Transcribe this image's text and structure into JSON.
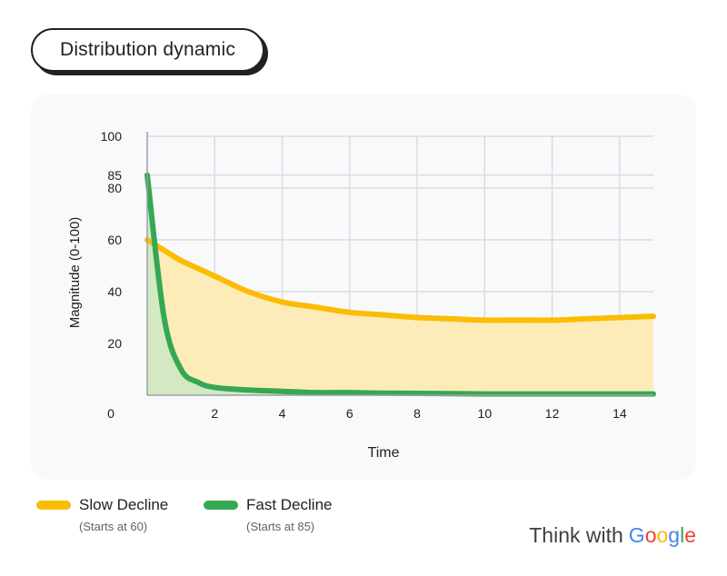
{
  "header": {
    "title": "Distribution dynamic"
  },
  "chart_data": {
    "type": "area",
    "xlabel": "Time",
    "ylabel": "Magnitude (0-100)",
    "xlim": [
      0,
      15
    ],
    "ylim": [
      0,
      100
    ],
    "x_ticks": [
      "0",
      "2",
      "4",
      "6",
      "8",
      "10",
      "12",
      "14"
    ],
    "y_ticks": [
      "20",
      "40",
      "60",
      "80",
      "85",
      "100"
    ],
    "x": [
      0,
      0.5,
      1,
      1.5,
      2,
      3,
      4,
      5,
      6,
      7,
      8,
      9,
      10,
      11,
      12,
      13,
      14,
      15
    ],
    "grid": true,
    "series": [
      {
        "name": "Slow Decline",
        "note": "(Starts at 60)",
        "color": "#FBBC04",
        "fill": "#FDECB8",
        "values": [
          60,
          56,
          52,
          49,
          46,
          40,
          36,
          34,
          32,
          31,
          30,
          29.5,
          29,
          29,
          29,
          29.5,
          30,
          30.5
        ]
      },
      {
        "name": "Fast Decline",
        "note": "(Starts at 85)",
        "color": "#34A853",
        "fill": "#CDE8C4",
        "values": [
          85,
          30,
          10,
          5,
          3,
          2,
          1.5,
          1,
          1,
          0.8,
          0.7,
          0.6,
          0.5,
          0.5,
          0.5,
          0.5,
          0.5,
          0.5
        ]
      }
    ]
  },
  "legend": {
    "slow": {
      "label": "Slow Decline",
      "note": "(Starts at 60)",
      "color": "#FBBC04"
    },
    "fast": {
      "label": "Fast Decline",
      "note": "(Starts at 85)",
      "color": "#34A853"
    }
  },
  "brand": {
    "prefix": "Think with",
    "word": [
      "G",
      "o",
      "o",
      "g",
      "l",
      "e"
    ]
  }
}
